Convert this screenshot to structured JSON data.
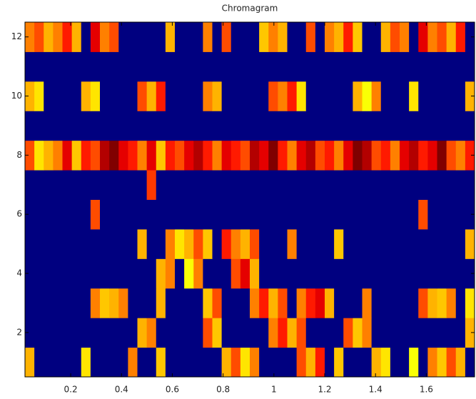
{
  "chart_data": {
    "type": "heatmap",
    "title": "Chromagram",
    "xlim": [
      0.02,
      1.79
    ],
    "ylim": [
      0.5,
      12.5
    ],
    "xticks": [
      0.2,
      0.4,
      0.6,
      0.8,
      1,
      1.2,
      1.4,
      1.6
    ],
    "yticks": [
      2,
      4,
      6,
      8,
      10,
      12
    ],
    "colormap": "jet",
    "z": [
      [
        0.7,
        0,
        0,
        0,
        0,
        0,
        0.65,
        0,
        0,
        0,
        0,
        0.75,
        0,
        0,
        0.68,
        0,
        0,
        0,
        0,
        0,
        0,
        0.7,
        0.8,
        0.65,
        0.75,
        0,
        0,
        0,
        0,
        0.8,
        0.7,
        0.85,
        0,
        0.68,
        0,
        0,
        0,
        0.7,
        0.65,
        0,
        0,
        0.62,
        0,
        0.75,
        0.68,
        0.8,
        0.7,
        0
      ],
      [
        0,
        0,
        0,
        0,
        0,
        0,
        0,
        0,
        0,
        0,
        0,
        0,
        0.7,
        0.75,
        0,
        0,
        0,
        0,
        0,
        0.8,
        0.68,
        0,
        0,
        0,
        0,
        0,
        0.75,
        0.85,
        0.7,
        0.8,
        0,
        0,
        0,
        0,
        0.8,
        0.68,
        0.75,
        0,
        0,
        0,
        0,
        0,
        0,
        0,
        0,
        0,
        0,
        0.7
      ],
      [
        0,
        0,
        0,
        0,
        0,
        0,
        0,
        0.75,
        0.68,
        0.7,
        0.75,
        0,
        0,
        0,
        0.7,
        0,
        0,
        0,
        0,
        0.68,
        0.8,
        0,
        0,
        0,
        0.75,
        0.85,
        0.7,
        0.8,
        0,
        0.75,
        0.85,
        0.9,
        0.7,
        0,
        0,
        0,
        0.75,
        0,
        0,
        0,
        0,
        0,
        0.8,
        0.7,
        0.68,
        0.75,
        0,
        0.65
      ],
      [
        0,
        0,
        0,
        0,
        0,
        0,
        0,
        0,
        0,
        0,
        0,
        0,
        0,
        0,
        0.7,
        0.75,
        0,
        0.62,
        0.75,
        0,
        0,
        0,
        0.8,
        0.9,
        0.7,
        0,
        0,
        0,
        0,
        0,
        0,
        0,
        0,
        0,
        0,
        0,
        0,
        0,
        0,
        0,
        0,
        0,
        0,
        0,
        0,
        0,
        0,
        0
      ],
      [
        0,
        0,
        0,
        0,
        0,
        0,
        0,
        0,
        0,
        0,
        0,
        0,
        0.7,
        0,
        0,
        0.75,
        0.65,
        0.7,
        0.8,
        0.68,
        0,
        0.85,
        0.75,
        0.7,
        0.8,
        0,
        0,
        0,
        0.75,
        0,
        0,
        0,
        0,
        0.68,
        0,
        0,
        0,
        0,
        0,
        0,
        0,
        0,
        0,
        0,
        0,
        0,
        0,
        0.7
      ],
      [
        0,
        0,
        0,
        0,
        0,
        0,
        0,
        0.8,
        0,
        0,
        0,
        0,
        0,
        0,
        0,
        0,
        0,
        0,
        0,
        0,
        0,
        0,
        0,
        0,
        0,
        0,
        0,
        0,
        0,
        0,
        0,
        0,
        0,
        0,
        0,
        0,
        0,
        0,
        0,
        0,
        0,
        0,
        0.8,
        0,
        0,
        0,
        0,
        0
      ],
      [
        0,
        0,
        0,
        0,
        0,
        0,
        0,
        0,
        0,
        0,
        0,
        0,
        0,
        0.82,
        0,
        0,
        0,
        0,
        0,
        0,
        0,
        0,
        0,
        0,
        0,
        0,
        0,
        0,
        0,
        0,
        0,
        0,
        0,
        0,
        0,
        0,
        0,
        0,
        0,
        0,
        0,
        0,
        0,
        0,
        0,
        0,
        0,
        0
      ],
      [
        0.8,
        0.65,
        0.7,
        0.75,
        0.9,
        0.68,
        0.85,
        0.8,
        0.95,
        1,
        0.9,
        0.85,
        0.75,
        0.9,
        0.68,
        0.85,
        0.8,
        0.9,
        0.95,
        0.85,
        0.75,
        0.9,
        0.85,
        0.8,
        0.95,
        0.9,
        1,
        0.85,
        0.75,
        0.9,
        0.95,
        0.8,
        0.85,
        0.75,
        0.9,
        1,
        0.95,
        0.8,
        0.85,
        0.75,
        0.9,
        0.95,
        0.85,
        0.9,
        1,
        0.8,
        0.75,
        0.85
      ],
      [
        0,
        0,
        0,
        0,
        0,
        0,
        0,
        0,
        0,
        0,
        0,
        0,
        0,
        0,
        0,
        0,
        0,
        0,
        0,
        0,
        0,
        0,
        0,
        0,
        0,
        0,
        0,
        0,
        0,
        0,
        0,
        0,
        0,
        0,
        0,
        0,
        0,
        0,
        0,
        0,
        0,
        0,
        0,
        0,
        0,
        0,
        0,
        0
      ],
      [
        0.7,
        0.65,
        0,
        0,
        0,
        0,
        0.7,
        0.65,
        0,
        0,
        0,
        0,
        0.8,
        0.7,
        0.85,
        0,
        0,
        0,
        0,
        0.75,
        0.7,
        0,
        0,
        0,
        0,
        0,
        0.8,
        0.75,
        0.85,
        0.65,
        0,
        0,
        0,
        0,
        0,
        0.7,
        0.62,
        0.75,
        0,
        0,
        0,
        0.65,
        0,
        0,
        0,
        0,
        0,
        0.7
      ],
      [
        0,
        0,
        0,
        0,
        0,
        0,
        0,
        0,
        0,
        0,
        0,
        0,
        0,
        0,
        0,
        0,
        0,
        0,
        0,
        0,
        0,
        0,
        0,
        0,
        0,
        0,
        0,
        0,
        0,
        0,
        0,
        0,
        0,
        0,
        0,
        0,
        0,
        0,
        0,
        0,
        0,
        0,
        0,
        0,
        0,
        0,
        0,
        0
      ],
      [
        0.75,
        0.8,
        0.7,
        0.75,
        0.85,
        0.7,
        0,
        0.9,
        0.75,
        0.8,
        0,
        0,
        0,
        0,
        0,
        0.7,
        0,
        0,
        0,
        0.75,
        0,
        0.8,
        0,
        0,
        0,
        0.68,
        0.75,
        0.7,
        0,
        0,
        0.8,
        0,
        0.75,
        0.7,
        0.85,
        0.68,
        0,
        0,
        0.7,
        0.8,
        0.75,
        0,
        0.9,
        0.75,
        0.8,
        0.7,
        0.85,
        0
      ]
    ]
  }
}
